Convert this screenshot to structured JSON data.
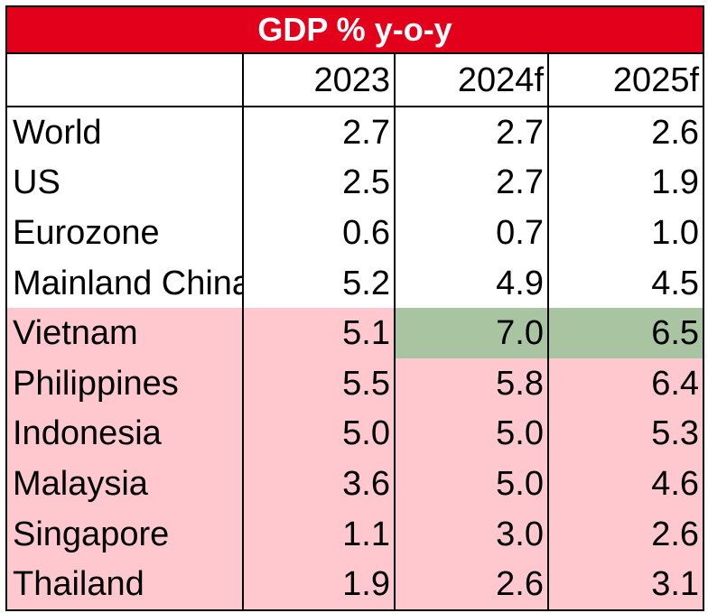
{
  "chart_data": {
    "type": "table",
    "title": "GDP % y-o-y",
    "columns": [
      "",
      "2023",
      "2024f",
      "2025f"
    ],
    "rows": [
      {
        "name": "World",
        "values": [
          "2.7",
          "2.7",
          "2.6"
        ],
        "group": "global"
      },
      {
        "name": "US",
        "values": [
          "2.5",
          "2.7",
          "1.9"
        ],
        "group": "global"
      },
      {
        "name": "Eurozone",
        "values": [
          "0.6",
          "0.7",
          "1.0"
        ],
        "group": "global"
      },
      {
        "name": "Mainland China",
        "values": [
          "5.2",
          "4.9",
          "4.5"
        ],
        "group": "global"
      },
      {
        "name": "Vietnam",
        "values": [
          "5.1",
          "7.0",
          "6.5"
        ],
        "group": "asean",
        "highlight": [
          false,
          true,
          true
        ]
      },
      {
        "name": "Philippines",
        "values": [
          "5.5",
          "5.8",
          "6.4"
        ],
        "group": "asean"
      },
      {
        "name": "Indonesia",
        "values": [
          "5.0",
          "5.0",
          "5.3"
        ],
        "group": "asean"
      },
      {
        "name": "Malaysia",
        "values": [
          "3.6",
          "5.0",
          "4.6"
        ],
        "group": "asean"
      },
      {
        "name": "Singapore",
        "values": [
          "1.1",
          "3.0",
          "2.6"
        ],
        "group": "asean"
      },
      {
        "name": "Thailand",
        "values": [
          "1.9",
          "2.6",
          "3.1"
        ],
        "group": "asean"
      }
    ],
    "colors": {
      "title_background": "#e3001b",
      "title_text": "#ffffff",
      "asean_background": "#ffc7ce",
      "highlight_background": "#a9c4a0"
    }
  }
}
